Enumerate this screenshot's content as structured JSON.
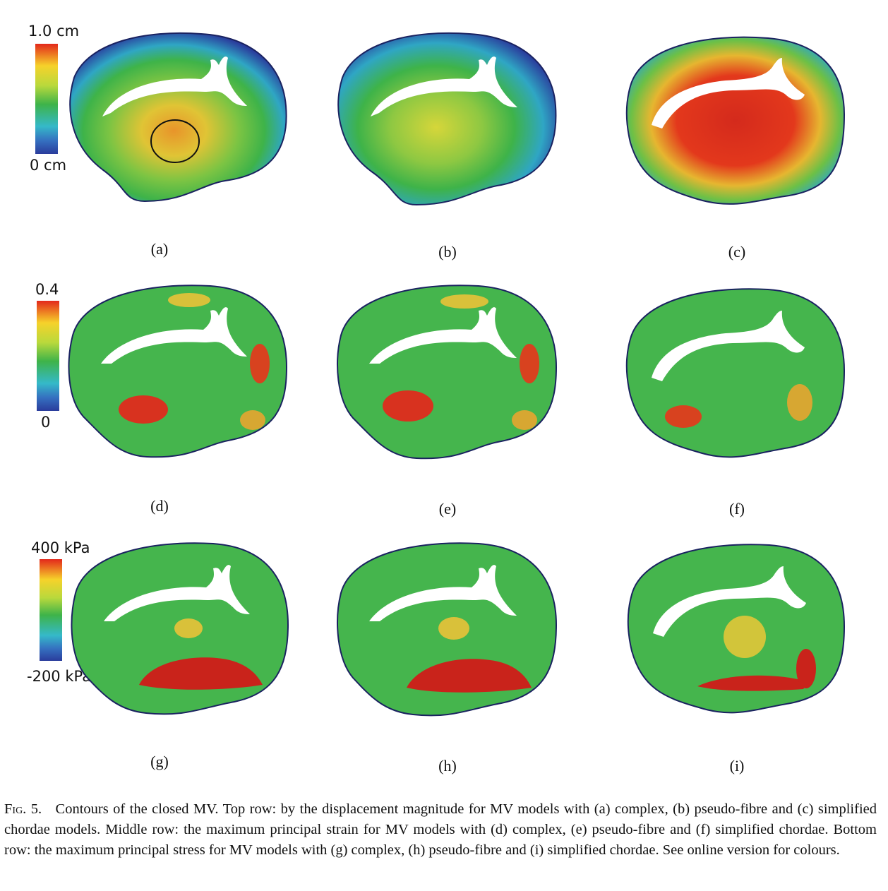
{
  "figure": {
    "scales": [
      {
        "max_label": "1.0 cm",
        "min_label": "0 cm"
      },
      {
        "max_label": "0.4",
        "min_label": "0"
      },
      {
        "max_label": "400 kPa",
        "min_label": "-200 kPa"
      }
    ],
    "panels": [
      "(a)",
      "(b)",
      "(c)",
      "(d)",
      "(e)",
      "(f)",
      "(g)",
      "(h)",
      "(i)"
    ],
    "colormap": [
      "#2a3c9c",
      "#35b9c9",
      "#3eb349",
      "#f6d22a",
      "#e3281b"
    ]
  },
  "caption": {
    "label": "Fig. 5.",
    "text": "Contours of the closed MV. Top row: by the displacement magnitude for MV models with (a) complex, (b) pseudo-fibre and (c) simplified chordae models. Middle row: the maximum principal strain for MV models with (d) complex, (e) pseudo-fibre and (f) simplified chordae. Bottom row: the maximum principal stress for MV models with (g) complex, (h) pseudo-fibre and (i) simplified chordae. See online version for colours."
  }
}
